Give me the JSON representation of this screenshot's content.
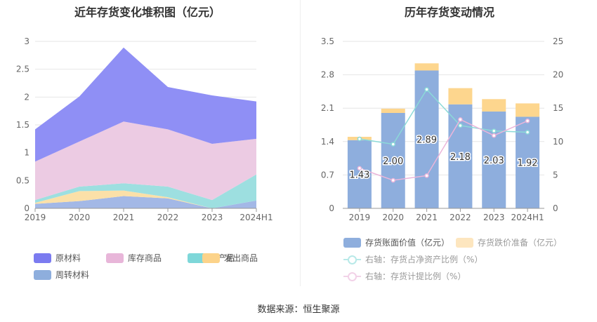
{
  "left_chart": {
    "title": "近年存货变化堆积图（亿元）"
  },
  "right_chart": {
    "title": "历年存货变动情况"
  },
  "source": "数据来源：恒生聚源",
  "colors": {
    "raw_material": "#8f8ff5",
    "inventory_goods": "#eccbe3",
    "in_process": "#9ddfe0",
    "issued_goods": "#fbe0a8",
    "turnover_material": "#a3b8e6",
    "book_value_bar": "#8eaedd",
    "provision_bar": "#fdd68e",
    "ratio_line": "#8bdad8",
    "provision_ratio_line": "#ebb5da"
  },
  "chart_data": [
    {
      "type": "area",
      "stacked": true,
      "categories": [
        "2019",
        "2020",
        "2021",
        "2022",
        "2023",
        "2024H1"
      ],
      "ylim": [
        0,
        3
      ],
      "yticks": [
        "0",
        "0.5",
        "1",
        "1.5",
        "2",
        "2.5",
        "3"
      ],
      "series": [
        {
          "name": "周转材料",
          "values": [
            0.08,
            0.13,
            0.22,
            0.18,
            0.0,
            0.14
          ],
          "color_key": "turnover_material"
        },
        {
          "name": "发出商品",
          "values": [
            0.02,
            0.18,
            0.1,
            0.02,
            0.0,
            0.0
          ],
          "color_key": "issued_goods"
        },
        {
          "name": "在产品",
          "values": [
            0.05,
            0.08,
            0.13,
            0.19,
            0.15,
            0.47
          ],
          "color_key": "in_process"
        },
        {
          "name": "库存商品",
          "values": [
            0.69,
            0.81,
            1.11,
            1.03,
            1.01,
            0.64
          ],
          "color_key": "inventory_goods"
        },
        {
          "name": "原材料",
          "values": [
            0.58,
            0.81,
            1.33,
            0.76,
            0.87,
            0.67
          ],
          "color_key": "raw_material"
        }
      ],
      "legend": [
        "原材料",
        "库存商品",
        "在产品",
        "发出商品",
        "周转材料"
      ],
      "legend_position": "bottom"
    },
    {
      "type": "bar",
      "stacked": true,
      "categories": [
        "2019",
        "2020",
        "2021",
        "2022",
        "2023",
        "2024H1"
      ],
      "ylim": [
        0,
        3.5
      ],
      "yticks": [
        "0",
        "0.7",
        "1.4",
        "2.1",
        "2.8",
        "3.5"
      ],
      "y2lim": [
        0,
        25
      ],
      "y2ticks": [
        "0",
        "5",
        "10",
        "15",
        "20",
        "25"
      ],
      "series": [
        {
          "name": "存货账面价值（亿元）",
          "type": "bar",
          "values": [
            1.43,
            2.0,
            2.89,
            2.18,
            2.03,
            1.92
          ],
          "labels": [
            "1.43",
            "2.00",
            "2.89",
            "2.18",
            "2.03",
            "1.92"
          ],
          "color_key": "book_value_bar"
        },
        {
          "name": "存货跌价准备（亿元）",
          "type": "bar",
          "values": [
            0.07,
            0.09,
            0.15,
            0.34,
            0.26,
            0.28
          ],
          "color_key": "provision_bar"
        },
        {
          "name": "右轴：存货占净资产比例（%）",
          "type": "line",
          "axis": "right",
          "values": [
            10.4,
            9.6,
            17.8,
            12.4,
            11.6,
            11.4
          ],
          "color_key": "ratio_line"
        },
        {
          "name": "右轴：存货计提比例（%）",
          "type": "line",
          "axis": "right",
          "values": [
            6.0,
            4.2,
            4.9,
            13.3,
            10.9,
            13.1
          ],
          "color_key": "provision_ratio_line"
        }
      ],
      "legend_position": "bottom"
    }
  ]
}
